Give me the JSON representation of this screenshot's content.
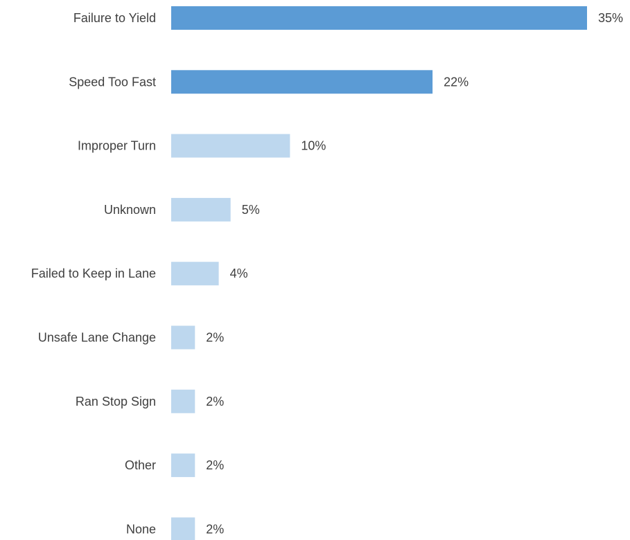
{
  "chart_data": {
    "type": "bar",
    "orientation": "horizontal",
    "categories": [
      "Failure to Yield",
      "Speed Too Fast",
      "Improper Turn",
      "Unknown",
      "Failed to Keep in Lane",
      "Unsafe Lane Change",
      "Ran Stop Sign",
      "Other",
      "None"
    ],
    "values": [
      35,
      22,
      10,
      5,
      4,
      2,
      2,
      2,
      2
    ],
    "value_labels": [
      "35%",
      "22%",
      "10%",
      "5%",
      "4%",
      "2%",
      "2%",
      "2%",
      "2%"
    ],
    "unit": "%",
    "xlim": [
      0,
      35
    ],
    "grid": false,
    "legend": "none",
    "title": "",
    "xlabel": "",
    "ylabel": ""
  },
  "colors": {
    "highlight": "#5b9bd5",
    "normal": "#bdd7ee",
    "text": "#3f3f3f"
  },
  "highlight_count": 2
}
